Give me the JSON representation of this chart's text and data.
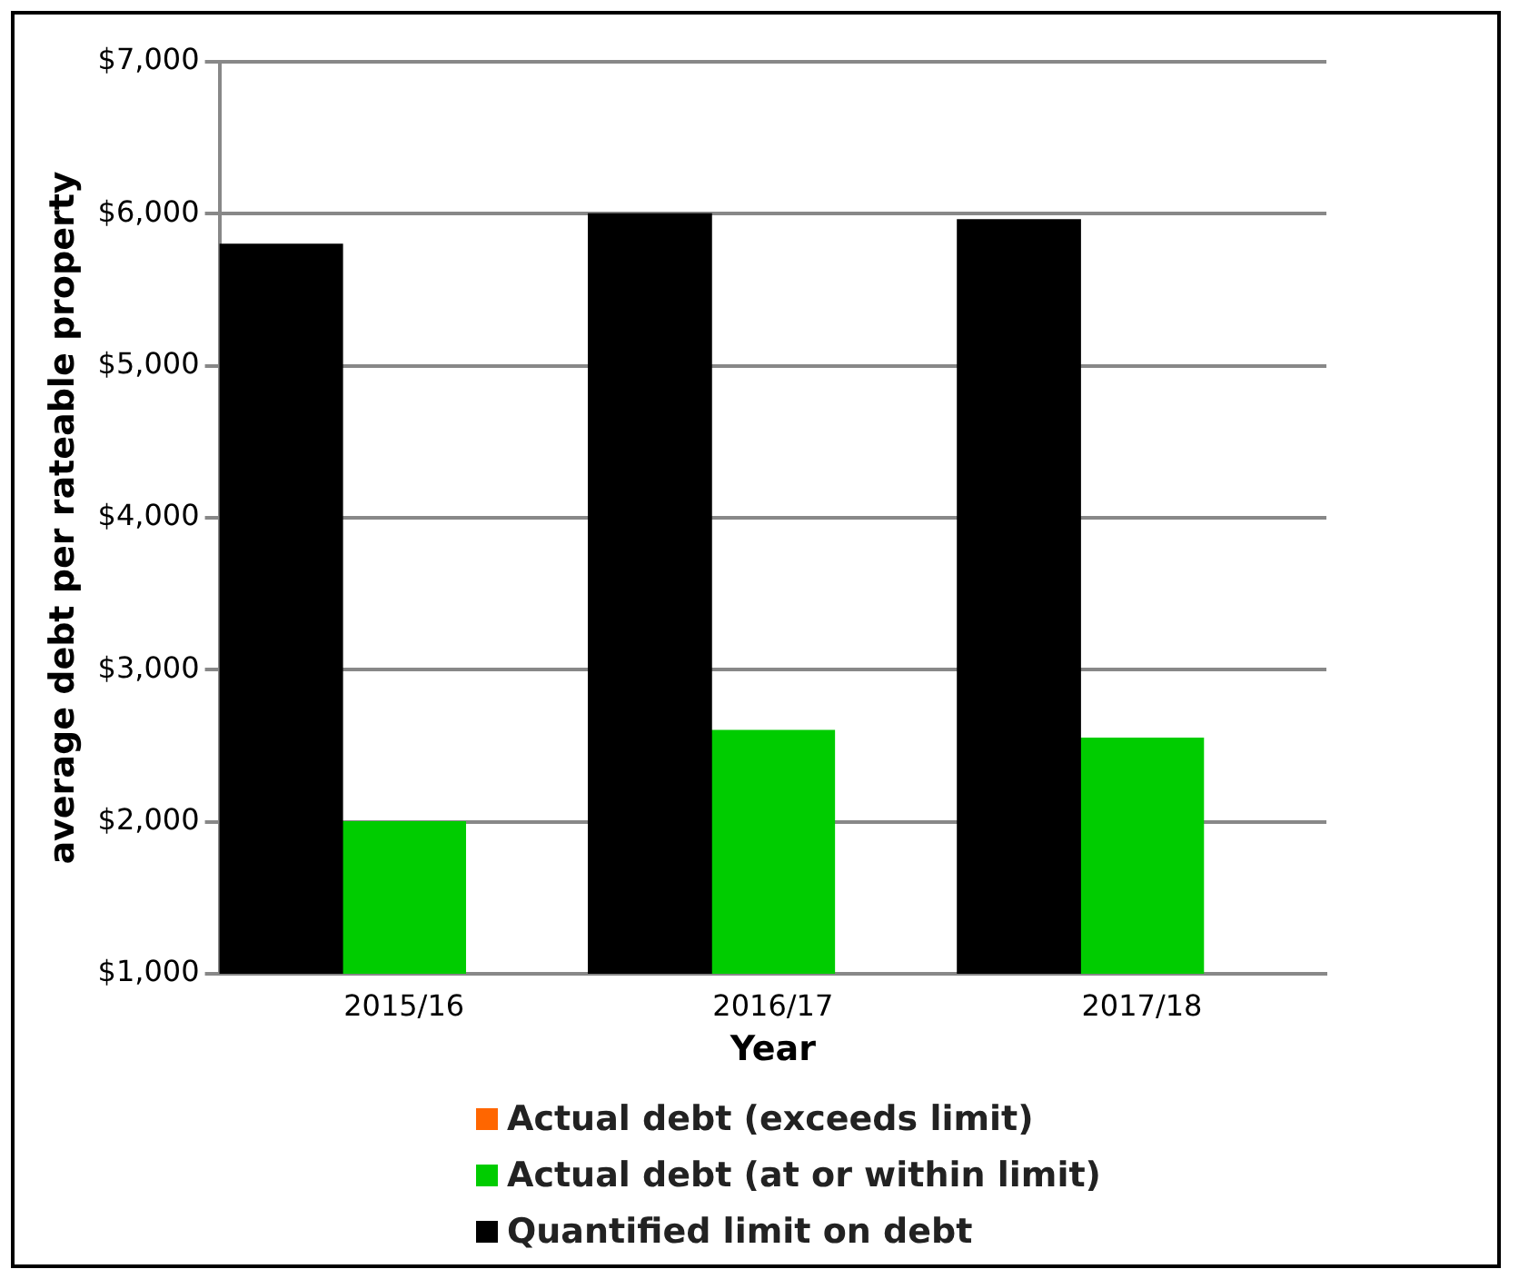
{
  "chart_data": {
    "type": "bar",
    "xlabel": "Year",
    "ylabel": "average debt per rateable property",
    "categories": [
      "2015/16",
      "2016/17",
      "2017/18"
    ],
    "series": [
      {
        "name": "Actual debt (exceeds limit)",
        "color": "#ff6600",
        "values": [
          null,
          null,
          null
        ]
      },
      {
        "name": "Actual debt (at or within limit)",
        "color": "#00cc00",
        "values": [
          2000,
          2600,
          2550
        ]
      },
      {
        "name": "Quantified limit on debt",
        "color": "#000000",
        "values": [
          5800,
          6000,
          5960
        ]
      }
    ],
    "ylim": [
      1000,
      7000
    ],
    "yticks": [
      {
        "value": 1000,
        "label": "$1,000"
      },
      {
        "value": 2000,
        "label": "$2,000"
      },
      {
        "value": 3000,
        "label": "$3,000"
      },
      {
        "value": 4000,
        "label": "$4,000"
      },
      {
        "value": 5000,
        "label": "$5,000"
      },
      {
        "value": 6000,
        "label": "$6,000"
      },
      {
        "value": 7000,
        "label": "$7,000"
      }
    ],
    "grid": "y",
    "legend": "bottom"
  }
}
